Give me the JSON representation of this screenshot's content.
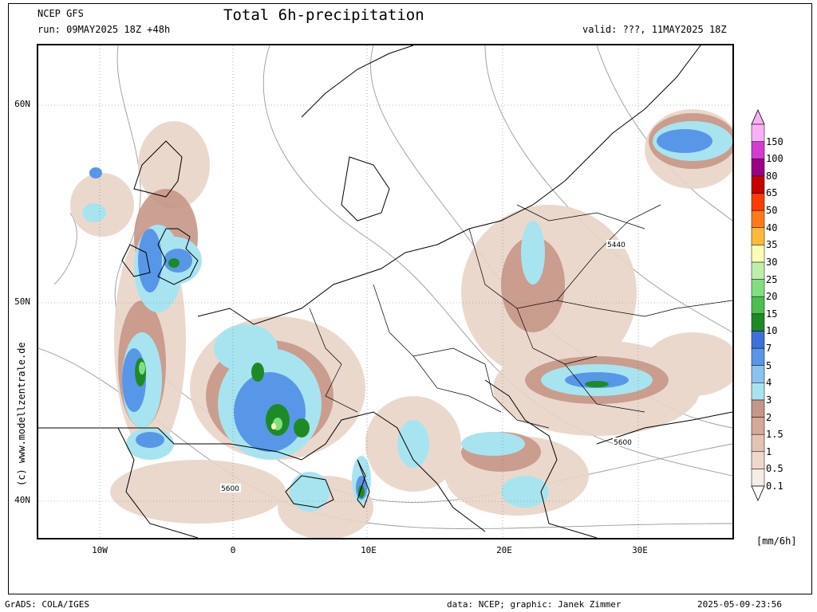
{
  "header": {
    "model": "NCEP GFS",
    "run": "run: 09MAY2025 18Z +48h",
    "title": "Total 6h-precipitation",
    "valid": "valid: ???, 11MAY2025 18Z"
  },
  "footer": {
    "left": "GrADS: COLA/IGES",
    "center": "data: NCEP; graphic: Janek Zimmer",
    "right": "2025-05-09-23:56"
  },
  "watermark": "(c) www.modellzentrale.de",
  "axes": {
    "lat_labels": [
      "60N",
      "50N",
      "40N"
    ],
    "lon_labels": [
      "10W",
      "0",
      "10E",
      "20E",
      "30E"
    ]
  },
  "contour_labels": [
    "5440",
    "5600",
    "5600"
  ],
  "legend": {
    "unit": "[mm/6h]",
    "levels": [
      "0.1",
      "0.5",
      "1",
      "1.5",
      "2",
      "3",
      "4",
      "5",
      "7",
      "10",
      "15",
      "20",
      "25",
      "30",
      "35",
      "40",
      "50",
      "65",
      "80",
      "100",
      "150"
    ],
    "colors": [
      "#f6ece6",
      "#eed8cc",
      "#e2c3b4",
      "#d4a998",
      "#c69788",
      "#a8e4ef",
      "#8bc2ee",
      "#5897e8",
      "#3f70d9",
      "#1e8a25",
      "#4cc04c",
      "#80e080",
      "#bdefa9",
      "#fdfdb4",
      "#fdb93c",
      "#fd7a1a",
      "#fd3c05",
      "#c80000",
      "#9a0086",
      "#d43bd0",
      "#f8b1f4"
    ]
  }
}
